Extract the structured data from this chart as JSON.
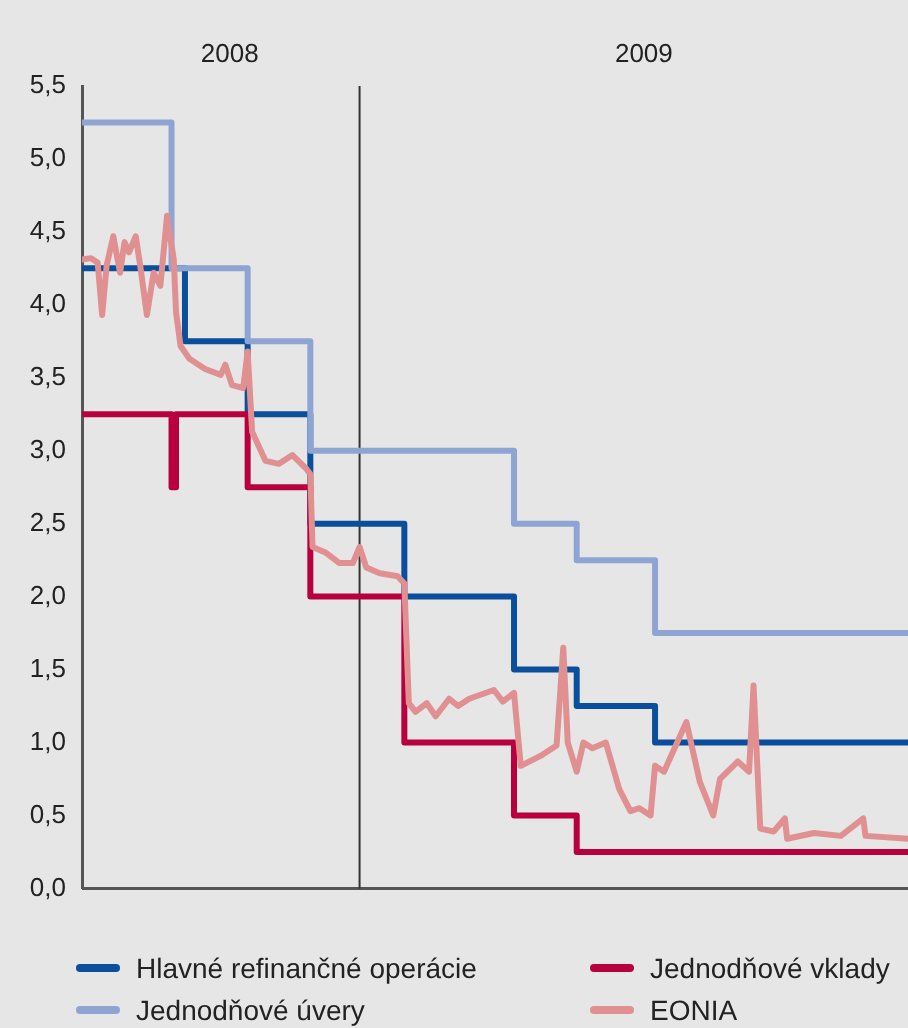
{
  "chart_data": {
    "type": "step",
    "xlim": [
      "2008-08-30",
      "2009-09-03"
    ],
    "xticks": [
      {
        "value": "2008-11-04",
        "label": "2008"
      },
      {
        "value": "2009-05-08",
        "label": "2009"
      }
    ],
    "ylim": [
      0,
      5.5
    ],
    "yticks": [
      {
        "value": 0,
        "label": "0,0"
      },
      {
        "value": 0.5,
        "label": "0,5"
      },
      {
        "value": 1,
        "label": "1,0"
      },
      {
        "value": 1.5,
        "label": "1,5"
      },
      {
        "value": 2,
        "label": "2,0"
      },
      {
        "value": 2.5,
        "label": "2,5"
      },
      {
        "value": 3,
        "label": "3,0"
      },
      {
        "value": 3.5,
        "label": "3,5"
      },
      {
        "value": 4,
        "label": "4,0"
      },
      {
        "value": 4.5,
        "label": "4,5"
      },
      {
        "value": 5,
        "label": "5,0"
      },
      {
        "value": 5.5,
        "label": "5,5"
      }
    ],
    "grid": false,
    "legend": "bottom",
    "ref_lines": [
      {
        "axis": "x",
        "value": "2009-01-01",
        "color": "#333333"
      }
    ],
    "series": [
      {
        "name": "Hlavné refinančné operácie",
        "color": "#0b4f9c",
        "x": [
          "2008-08-30",
          "2008-10-15",
          "2008-11-12",
          "2008-12-10",
          "2009-01-21",
          "2009-03-11",
          "2009-04-08",
          "2009-05-13",
          "2009-09-03"
        ],
        "values": [
          4.25,
          3.75,
          3.25,
          2.5,
          2.0,
          1.5,
          1.25,
          1.0,
          1.0
        ]
      },
      {
        "name": "Jednodňové vklady",
        "color": "#b8003f",
        "x": [
          "2008-08-30",
          "2008-10-09",
          "2008-10-11",
          "2008-11-12",
          "2008-12-10",
          "2009-01-21",
          "2009-03-11",
          "2009-04-08",
          "2009-09-03"
        ],
        "values": [
          3.25,
          2.75,
          3.25,
          2.75,
          2.0,
          1.0,
          0.5,
          0.25,
          0.25
        ]
      },
      {
        "name": "Jednodňové úvery",
        "color": "#8ea5d4",
        "x": [
          "2008-08-30",
          "2008-10-09",
          "2008-11-12",
          "2008-12-10",
          "2009-03-11",
          "2009-04-08",
          "2009-05-13",
          "2009-09-03"
        ],
        "values": [
          5.25,
          4.25,
          3.75,
          3.0,
          2.5,
          2.25,
          1.75,
          1.75
        ]
      },
      {
        "name": "EONIA",
        "color": "#e09090",
        "type": "line",
        "x": [
          "2008-08-30",
          "2008-09-03",
          "2008-09-06",
          "2008-09-08",
          "2008-09-10",
          "2008-09-13",
          "2008-09-16",
          "2008-09-18",
          "2008-09-20",
          "2008-09-23",
          "2008-09-25",
          "2008-09-28",
          "2008-10-01",
          "2008-10-04",
          "2008-10-07",
          "2008-10-10",
          "2008-10-11",
          "2008-10-13",
          "2008-10-17",
          "2008-10-24",
          "2008-10-31",
          "2008-11-02",
          "2008-11-05",
          "2008-11-10",
          "2008-11-12",
          "2008-11-14",
          "2008-11-20",
          "2008-11-26",
          "2008-12-02",
          "2008-12-08",
          "2008-12-10",
          "2008-12-11",
          "2008-12-17",
          "2008-12-23",
          "2008-12-29",
          "2009-01-01",
          "2009-01-04",
          "2009-01-10",
          "2009-01-18",
          "2009-01-21",
          "2009-01-23",
          "2009-01-26",
          "2009-01-31",
          "2009-02-04",
          "2009-02-10",
          "2009-02-14",
          "2009-02-19",
          "2009-03-02",
          "2009-03-06",
          "2009-03-11",
          "2009-03-14",
          "2009-03-23",
          "2009-03-30",
          "2009-04-02",
          "2009-04-04",
          "2009-04-08",
          "2009-04-11",
          "2009-04-15",
          "2009-04-21",
          "2009-04-27",
          "2009-05-02",
          "2009-05-06",
          "2009-05-11",
          "2009-05-13",
          "2009-05-17",
          "2009-05-27",
          "2009-06-02",
          "2009-06-08",
          "2009-06-11",
          "2009-06-19",
          "2009-06-24",
          "2009-06-26",
          "2009-06-29",
          "2009-07-05",
          "2009-07-10",
          "2009-07-11",
          "2009-07-23",
          "2009-08-04",
          "2009-08-14",
          "2009-08-15",
          "2009-09-03"
        ],
        "values": [
          4.31,
          4.32,
          4.29,
          3.93,
          4.27,
          4.47,
          4.22,
          4.43,
          4.36,
          4.47,
          4.27,
          3.93,
          4.22,
          4.13,
          4.61,
          4.31,
          3.95,
          3.72,
          3.63,
          3.56,
          3.52,
          3.59,
          3.45,
          3.43,
          3.68,
          3.13,
          2.93,
          2.91,
          2.97,
          2.88,
          2.84,
          2.34,
          2.3,
          2.23,
          2.23,
          2.34,
          2.2,
          2.16,
          2.14,
          2.09,
          1.27,
          1.21,
          1.27,
          1.18,
          1.3,
          1.25,
          1.3,
          1.36,
          1.28,
          1.34,
          0.84,
          0.91,
          0.98,
          1.65,
          1.0,
          0.8,
          1.0,
          0.96,
          1.0,
          0.68,
          0.53,
          0.55,
          0.5,
          0.84,
          0.8,
          1.14,
          0.73,
          0.5,
          0.75,
          0.87,
          0.8,
          1.39,
          0.41,
          0.39,
          0.48,
          0.34,
          0.38,
          0.36,
          0.48,
          0.36,
          0.34
        ]
      }
    ]
  }
}
